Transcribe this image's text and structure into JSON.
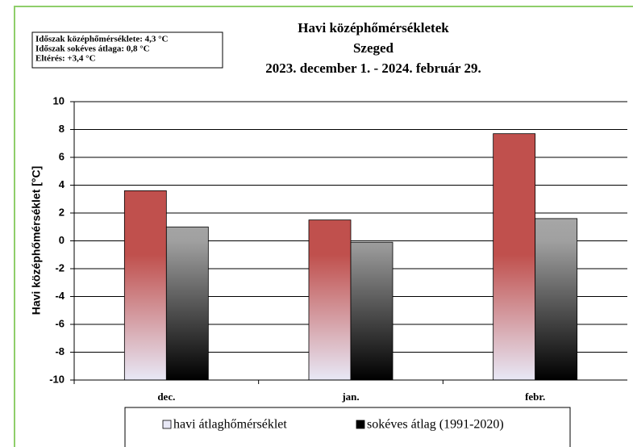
{
  "chart_data": {
    "type": "bar",
    "title": [
      "Havi középhőmérsékletek",
      "Szeged",
      "2023. december 1. - 2024. február 29."
    ],
    "info": [
      "Időszak középhőmérséklete: 4,3 °C",
      "Időszak sokéves átlaga: 0,8 °C",
      "Eltérés: +3,4 °C"
    ],
    "ylabel": "Havi középhőmérséklet [°C]",
    "categories": [
      "dec.",
      "jan.",
      "febr."
    ],
    "series": [
      {
        "name": "havi átlaghőmérséklet",
        "color": "#c0504d",
        "values": [
          3.6,
          1.5,
          7.7
        ]
      },
      {
        "name": "sokéves átlag (1991-2020)",
        "color": "#c8c8c8",
        "values": [
          1.0,
          -0.1,
          1.6
        ]
      }
    ],
    "ylim": [
      -10,
      10
    ],
    "yticks": [
      -10,
      -8,
      -6,
      -4,
      -2,
      0,
      2,
      4,
      6,
      8,
      10
    ],
    "grid": true
  }
}
